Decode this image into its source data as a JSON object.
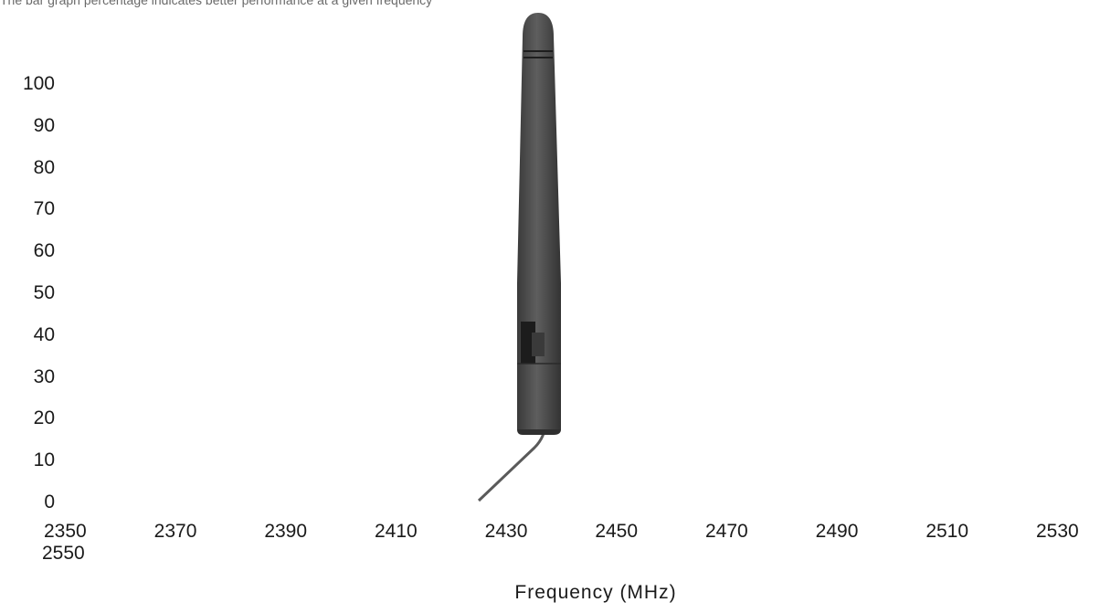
{
  "caption": "The bar graph percentage indicates better performance at a given frequency",
  "chart_data": {
    "type": "bar",
    "title": "",
    "caption": "The bar graph percentage indicates better performance at a given frequency",
    "xlabel": "Frequency (MHz)",
    "ylabel": "",
    "x_ticks": [
      "2350",
      "2370",
      "2390",
      "2410",
      "2430",
      "2450",
      "2470",
      "2490",
      "2510",
      "2530",
      "2550"
    ],
    "y_ticks": [
      "0",
      "10",
      "20",
      "30",
      "40",
      "50",
      "60",
      "70",
      "80",
      "90",
      "100"
    ],
    "xlim": [
      2350,
      2550
    ],
    "ylim": [
      0,
      100
    ],
    "grid": false,
    "legend": "none",
    "series": [],
    "overlay_image": "antenna-icon"
  },
  "colors": {
    "antenna_body": "#4a4a4a",
    "antenna_dark": "#2f2f2f",
    "antenna_highlight": "#6b6b6b",
    "cable": "#5a5a5a"
  }
}
